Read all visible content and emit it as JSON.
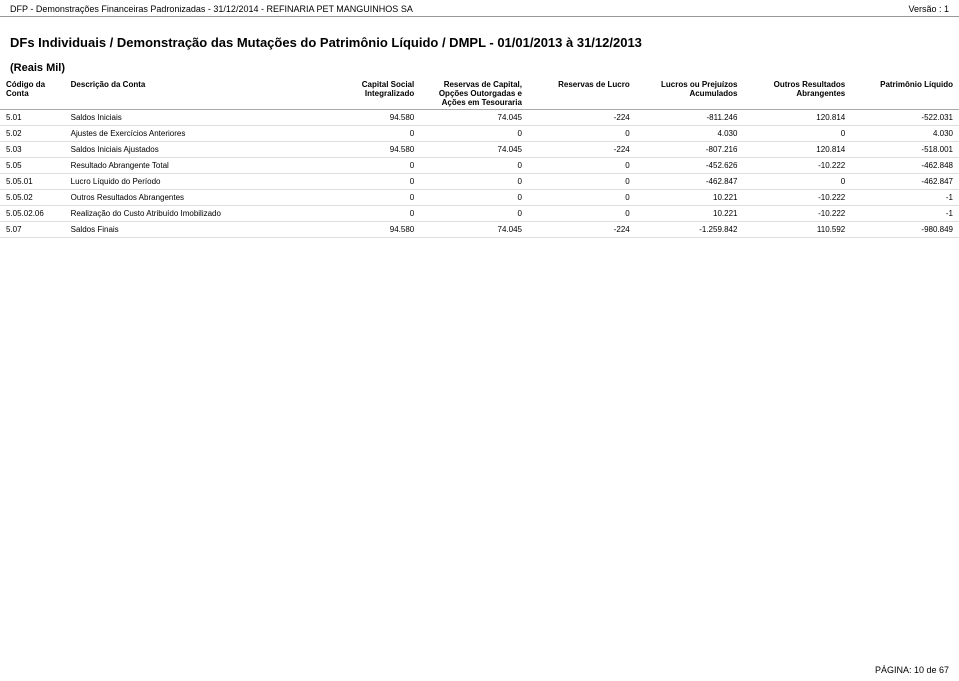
{
  "header": {
    "left_text": "DFP - Demonstrações Financeiras Padronizadas - 31/12/2014 - REFINARIA PET MANGUINHOS SA",
    "right_text": "Versão : 1"
  },
  "doc_title": "DFs Individuais / Demonstração das Mutações do Patrimônio Líquido / DMPL - 01/01/2013 à 31/12/2013",
  "unit_label": "(Reais Mil)",
  "columns": {
    "codigo": "Código da Conta",
    "descricao": "Descrição da Conta",
    "capital_social": "Capital Social Integralizado",
    "reservas_capital": "Reservas de Capital, Opções Outorgadas e Ações em Tesouraria",
    "reservas_lucro": "Reservas de Lucro",
    "lucros_prejuizos": "Lucros ou Prejuízos Acumulados",
    "outros_resultados": "Outros Resultados Abrangentes",
    "patrimonio_liquido": "Patrimônio Líquido"
  },
  "rows": [
    {
      "codigo": "5.01",
      "descricao": "Saldos Iniciais",
      "c1": "94.580",
      "c2": "74.045",
      "c3": "-224",
      "c4": "-811.246",
      "c5": "120.814",
      "c6": "-522.031"
    },
    {
      "codigo": "5.02",
      "descricao": "Ajustes de Exercícios Anteriores",
      "c1": "0",
      "c2": "0",
      "c3": "0",
      "c4": "4.030",
      "c5": "0",
      "c6": "4.030"
    },
    {
      "codigo": "5.03",
      "descricao": "Saldos Iniciais Ajustados",
      "c1": "94.580",
      "c2": "74.045",
      "c3": "-224",
      "c4": "-807.216",
      "c5": "120.814",
      "c6": "-518.001"
    },
    {
      "codigo": "5.05",
      "descricao": "Resultado Abrangente Total",
      "c1": "0",
      "c2": "0",
      "c3": "0",
      "c4": "-452.626",
      "c5": "-10.222",
      "c6": "-462.848"
    },
    {
      "codigo": "5.05.01",
      "descricao": "Lucro Líquido do Período",
      "c1": "0",
      "c2": "0",
      "c3": "0",
      "c4": "-462.847",
      "c5": "0",
      "c6": "-462.847"
    },
    {
      "codigo": "5.05.02",
      "descricao": "Outros Resultados Abrangentes",
      "c1": "0",
      "c2": "0",
      "c3": "0",
      "c4": "10.221",
      "c5": "-10.222",
      "c6": "-1"
    },
    {
      "codigo": "5.05.02.06",
      "descricao": "Realização do Custo Atribuído Imobilizado",
      "c1": "0",
      "c2": "0",
      "c3": "0",
      "c4": "10.221",
      "c5": "-10.222",
      "c6": "-1"
    },
    {
      "codigo": "5.07",
      "descricao": "Saldos Finais",
      "c1": "94.580",
      "c2": "74.045",
      "c3": "-224",
      "c4": "-1.259.842",
      "c5": "110.592",
      "c6": "-980.849"
    }
  ],
  "footer": {
    "page_text": "PÁGINA: 10 de 67"
  },
  "colors": {
    "text": "#000000",
    "bg": "#ffffff",
    "header_border": "#999999",
    "row_border": "#dddddd"
  }
}
